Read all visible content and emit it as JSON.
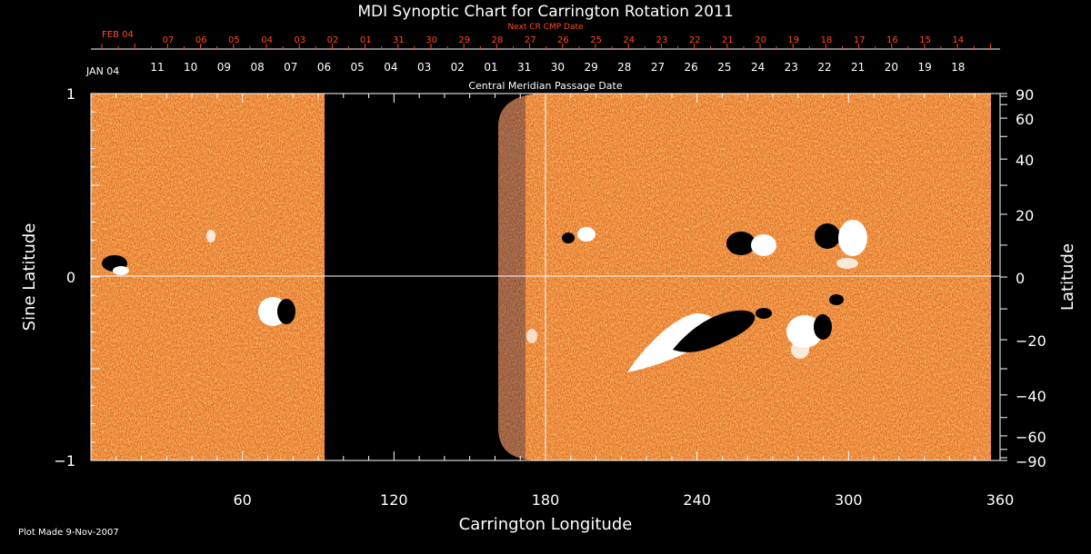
{
  "chart_data": {
    "type": "heatmap",
    "title": "MDI Synoptic Chart for Carrington Rotation 2011",
    "xlabel": "Carrington Longitude",
    "ylabel_left": "Sine Latitude",
    "ylabel_right": "Latitude",
    "xlim": [
      0,
      360
    ],
    "ylim": [
      -1,
      1
    ],
    "x_ticks": [
      "60",
      "120",
      "180",
      "240",
      "300",
      "360"
    ],
    "y_ticks_left": [
      "1",
      "0",
      "−1"
    ],
    "y_ticks_right": [
      "90",
      "60",
      "40",
      "20",
      "0",
      "−20",
      "−40",
      "−60",
      "−90"
    ],
    "cmp_axis_title": "Central Meridian Passage Date",
    "cmp_month_label": "JAN 04",
    "cmp_dates": [
      "11",
      "10",
      "09",
      "08",
      "07",
      "06",
      "05",
      "04",
      "03",
      "02",
      "01",
      "31",
      "30",
      "29",
      "28",
      "27",
      "26",
      "25",
      "24",
      "23",
      "22",
      "21",
      "20",
      "19",
      "18"
    ],
    "next_cr_title": "Next CR CMP Date",
    "next_cr_month_label": "FEB 04",
    "next_cr_dates": [
      "07",
      "06",
      "05",
      "04",
      "03",
      "02",
      "01",
      "31",
      "30",
      "29",
      "28",
      "27",
      "26",
      "25",
      "24",
      "23",
      "22",
      "21",
      "20",
      "19",
      "18",
      "17",
      "16",
      "15",
      "14"
    ],
    "data_gap_longitude": [
      92,
      165
    ],
    "colors": {
      "background": "#000000",
      "field_base": "#e8661e",
      "positive": "#ffffff",
      "negative": "#000000",
      "accent_text": "#ff4a1c"
    }
  },
  "footer": {
    "plot_made": "Plot Made  9-Nov-2007"
  }
}
